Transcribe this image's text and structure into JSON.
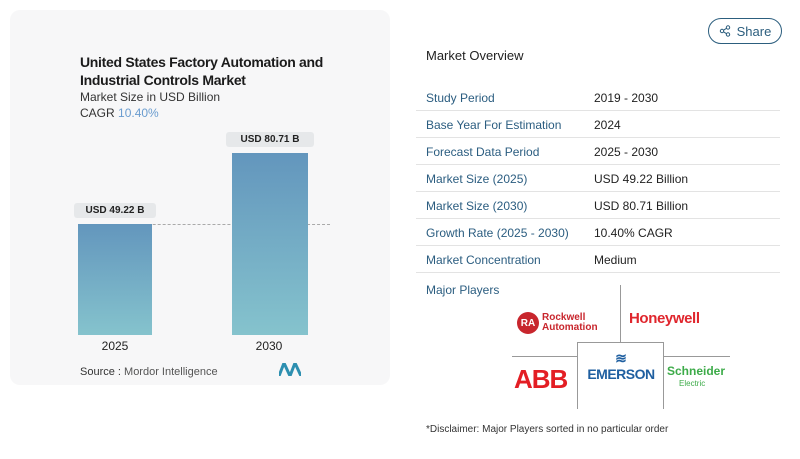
{
  "chart": {
    "title": "United States Factory Automation and Industrial Controls Market",
    "subtitle": "Market Size in USD Billion",
    "cagr_label": "CAGR",
    "cagr_value": "10.40%",
    "source_label": "Source :",
    "source_value": "Mordor Intelligence"
  },
  "chart_data": {
    "type": "bar",
    "title": "United States Factory Automation and Industrial Controls Market",
    "ylabel": "Market Size in USD Billion",
    "categories": [
      "2025",
      "2030"
    ],
    "values": [
      49.22,
      80.71
    ],
    "data_labels": [
      "USD 49.22 B",
      "USD 80.71 B"
    ],
    "grid": false,
    "colors": [
      "#6396bd",
      "#85c3cd"
    ]
  },
  "share": {
    "label": "Share",
    "icon": "share-icon"
  },
  "overview": {
    "title": "Market Overview",
    "rows": [
      {
        "k": "Study Period",
        "v": "2019 - 2030"
      },
      {
        "k": "Base Year For Estimation",
        "v": "2024"
      },
      {
        "k": "Forecast Data Period",
        "v": "2025 - 2030"
      },
      {
        "k": "Market Size (2025)",
        "v": "USD 49.22 Billion"
      },
      {
        "k": "Market Size (2030)",
        "v": "USD 80.71 Billion"
      },
      {
        "k": "Growth Rate (2025 - 2030)",
        "v": "10.40% CAGR"
      },
      {
        "k": "Market Concentration",
        "v": "Medium"
      }
    ]
  },
  "players": {
    "title": "Major Players",
    "logos": [
      "Rockwell Automation",
      "Honeywell",
      "ABB",
      "EMERSON",
      "Schneider Electric"
    ]
  },
  "disclaimer": "*Disclaimer: Major Players sorted in no particular order"
}
